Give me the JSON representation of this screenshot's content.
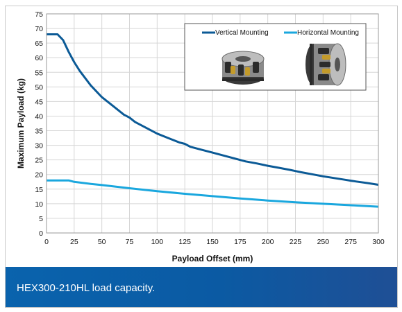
{
  "caption": "HEX300-210HL load capacity.",
  "chart_data": {
    "type": "line",
    "title": "",
    "xlabel": "Payload Offset (mm)",
    "ylabel": "Maximum Payload (kg)",
    "xlim": [
      0,
      300
    ],
    "ylim": [
      0,
      75
    ],
    "xticks": [
      0,
      25,
      50,
      75,
      100,
      125,
      150,
      175,
      200,
      225,
      250,
      275,
      300
    ],
    "yticks": [
      0,
      5,
      10,
      15,
      20,
      25,
      30,
      35,
      40,
      45,
      50,
      55,
      60,
      65,
      70,
      75
    ],
    "grid": true,
    "legend_position": "top-right",
    "series": [
      {
        "name": "Vertical Mounting",
        "color": "#0b5a96",
        "x": [
          0,
          5,
          10,
          15,
          20,
          25,
          30,
          40,
          50,
          60,
          70,
          75,
          80,
          90,
          100,
          110,
          120,
          125,
          130,
          140,
          150,
          160,
          170,
          175,
          180,
          190,
          200,
          210,
          220,
          225,
          230,
          240,
          250,
          260,
          270,
          275,
          280,
          290,
          300
        ],
        "y": [
          68,
          68,
          68,
          66,
          62,
          58.5,
          55.5,
          50.5,
          46.5,
          43.5,
          40.5,
          39.5,
          38,
          36,
          34,
          32.5,
          31,
          30.5,
          29.5,
          28.5,
          27.5,
          26.5,
          25.5,
          25,
          24.5,
          23.8,
          23,
          22.3,
          21.6,
          21.2,
          20.8,
          20.1,
          19.4,
          18.8,
          18.2,
          17.9,
          17.6,
          17.1,
          16.5
        ]
      },
      {
        "name": "Horizontal Mounting",
        "color": "#1aa7de",
        "x": [
          0,
          10,
          20,
          25,
          40,
          50,
          75,
          100,
          125,
          150,
          175,
          200,
          225,
          250,
          275,
          300
        ],
        "y": [
          18,
          18,
          18,
          17.5,
          16.8,
          16.4,
          15.3,
          14.3,
          13.4,
          12.6,
          11.8,
          11.1,
          10.5,
          10,
          9.5,
          9
        ]
      }
    ],
    "legend_images": [
      "vertical-mount-hexapod-image",
      "horizontal-mount-hexapod-image"
    ]
  }
}
